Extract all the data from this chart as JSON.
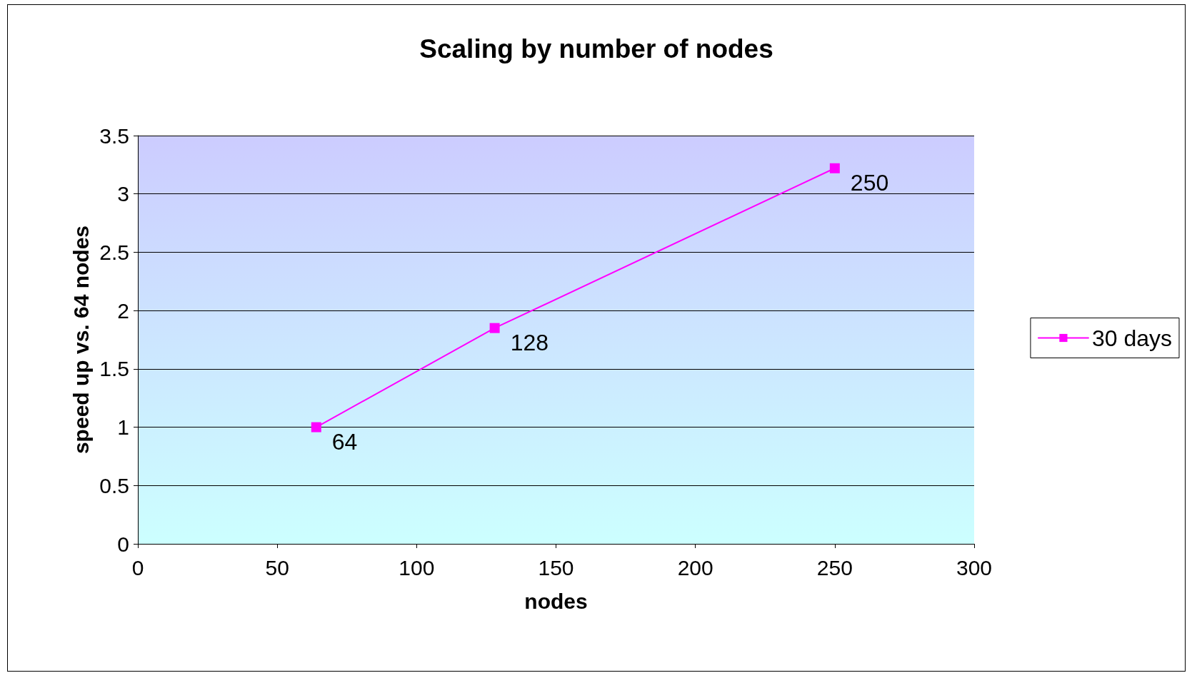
{
  "chart_data": {
    "type": "line",
    "title": "Scaling by number of nodes",
    "xlabel": "nodes",
    "ylabel": "speed up vs. 64 nodes",
    "x": [
      64,
      128,
      250
    ],
    "series": [
      {
        "name": "30 days",
        "color": "#ff00ff",
        "values": [
          1,
          1.85,
          3.22
        ]
      }
    ],
    "annotations": [
      {
        "text": "64",
        "x": 64,
        "y": 1
      },
      {
        "text": "128",
        "x": 128,
        "y": 1.85
      },
      {
        "text": "250",
        "x": 250,
        "y": 3.22
      }
    ],
    "xlim": [
      0,
      300
    ],
    "xticks": [
      0,
      50,
      100,
      150,
      200,
      250,
      300
    ],
    "ylim": [
      0,
      3.5
    ],
    "yticks": [
      0,
      0.5,
      1,
      1.5,
      2,
      2.5,
      3,
      3.5
    ],
    "grid": "y",
    "legend": "right",
    "marker": "square",
    "line_style": "solid"
  }
}
